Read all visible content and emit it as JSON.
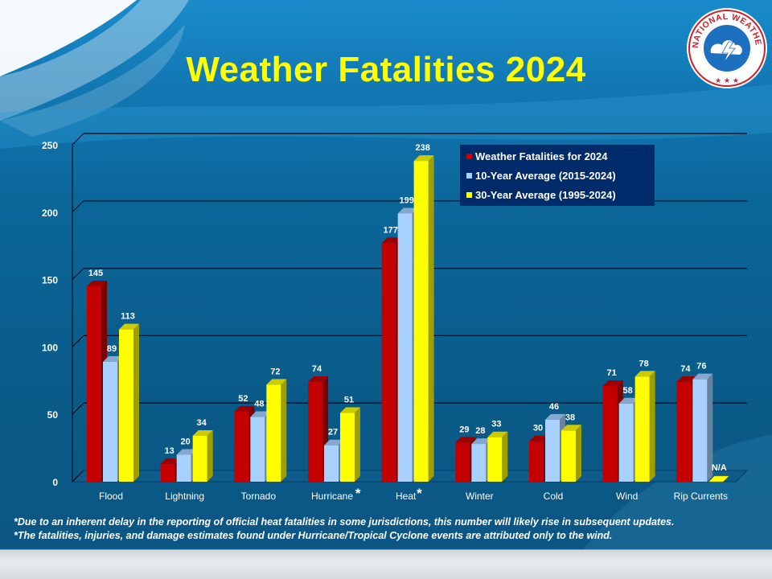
{
  "title": "Weather Fatalities 2024",
  "logo": {
    "text": "NATIONAL WEATHER SERVICE",
    "icon": "nws-logo"
  },
  "colors": {
    "fatalities": "#c40000",
    "ten_year": "#a9d1ff",
    "thirty_year": "#ffff00",
    "title": "#ffff00"
  },
  "chart_data": {
    "type": "bar",
    "categories": [
      "Flood",
      "Lightning",
      "Tornado",
      "Hurricane",
      "Heat",
      "Winter",
      "Cold",
      "Wind",
      "Rip Currents"
    ],
    "category_markers": {
      "Hurricane": "*",
      "Heat": "*"
    },
    "series": [
      {
        "name": "Weather Fatalities for 2024",
        "color": "#c40000",
        "values": [
          145,
          13,
          52,
          74,
          177,
          29,
          30,
          71,
          74
        ]
      },
      {
        "name": "10-Year Average (2015-2024)",
        "color": "#a9d1ff",
        "values": [
          89,
          20,
          48,
          27,
          199,
          28,
          46,
          58,
          76
        ]
      },
      {
        "name": "30-Year Average (1995-2024)",
        "color": "#ffff00",
        "values": [
          113,
          34,
          72,
          51,
          238,
          33,
          38,
          78,
          null
        ]
      }
    ],
    "missing_label": "N/A",
    "y_ticks": [
      0,
      50,
      100,
      150,
      200,
      250
    ],
    "ylim": [
      0,
      250
    ],
    "grid": true,
    "legend_position": "top-right"
  },
  "footnotes": [
    "*Due to an inherent delay in the reporting of official heat fatalities in some jurisdictions, this number will likely rise in subsequent updates.",
    "*The fatalities, injuries, and damage estimates found under Hurricane/Tropical Cyclone events are attributed only to the wind."
  ]
}
